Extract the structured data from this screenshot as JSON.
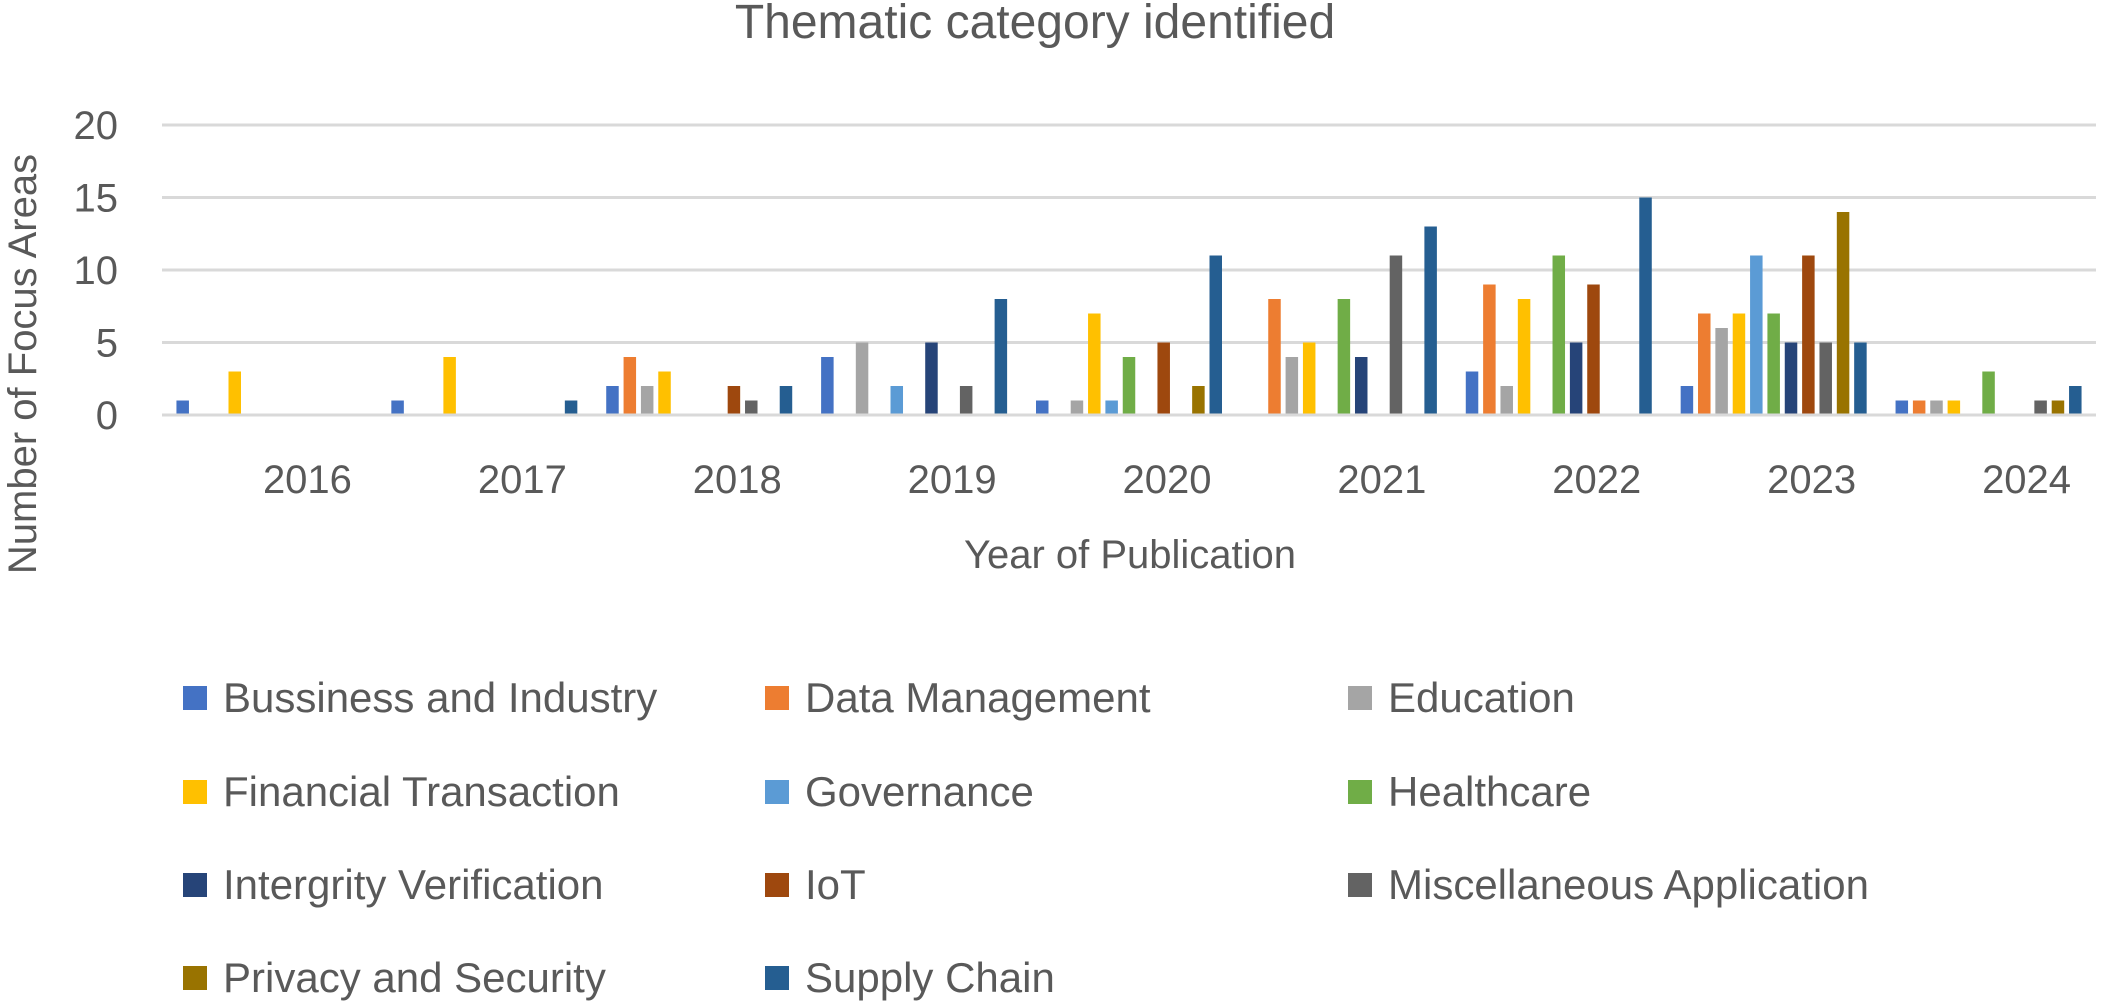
{
  "chart_data": {
    "type": "bar",
    "title": "Thematic category identified",
    "xlabel": "Year of Publication",
    "ylabel": "Number of Focus Areas",
    "ylim": [
      0,
      20
    ],
    "yticks": [
      0,
      5,
      10,
      15,
      20
    ],
    "grid": true,
    "legend_position": "bottom",
    "categories": [
      "2016",
      "2017",
      "2018",
      "2019",
      "2020",
      "2021",
      "2022",
      "2023",
      "2024"
    ],
    "series": [
      {
        "name": "Bussiness and Industry",
        "color": "#4472C4",
        "values": [
          1,
          1,
          2,
          4,
          1,
          0,
          3,
          2,
          1
        ]
      },
      {
        "name": "Data Management",
        "color": "#ED7D31",
        "values": [
          0,
          0,
          4,
          0,
          0,
          8,
          9,
          7,
          1
        ]
      },
      {
        "name": "Education",
        "color": "#A5A5A5",
        "values": [
          0,
          0,
          2,
          5,
          1,
          4,
          2,
          6,
          1
        ]
      },
      {
        "name": "Financial Transaction",
        "color": "#FFC000",
        "values": [
          3,
          4,
          3,
          0,
          7,
          5,
          8,
          7,
          1
        ]
      },
      {
        "name": "Governance",
        "color": "#5B9BD5",
        "values": [
          0,
          0,
          0,
          2,
          1,
          0,
          0,
          11,
          0
        ]
      },
      {
        "name": "Healthcare",
        "color": "#70AD47",
        "values": [
          0,
          0,
          0,
          0,
          4,
          8,
          11,
          7,
          3
        ]
      },
      {
        "name": "Intergrity Verification",
        "color": "#264478",
        "values": [
          0,
          0,
          0,
          5,
          0,
          4,
          5,
          5,
          0
        ]
      },
      {
        "name": "IoT",
        "color": "#9E480E",
        "values": [
          0,
          0,
          2,
          0,
          5,
          0,
          9,
          11,
          0
        ]
      },
      {
        "name": "Miscellaneous Application",
        "color": "#636363",
        "values": [
          0,
          0,
          1,
          2,
          0,
          11,
          0,
          5,
          1
        ]
      },
      {
        "name": "Privacy and Security",
        "color": "#997300",
        "values": [
          0,
          0,
          0,
          0,
          2,
          0,
          0,
          14,
          1
        ]
      },
      {
        "name": "Supply Chain",
        "color": "#255E91",
        "values": [
          0,
          1,
          2,
          8,
          11,
          13,
          15,
          5,
          2
        ]
      }
    ]
  }
}
